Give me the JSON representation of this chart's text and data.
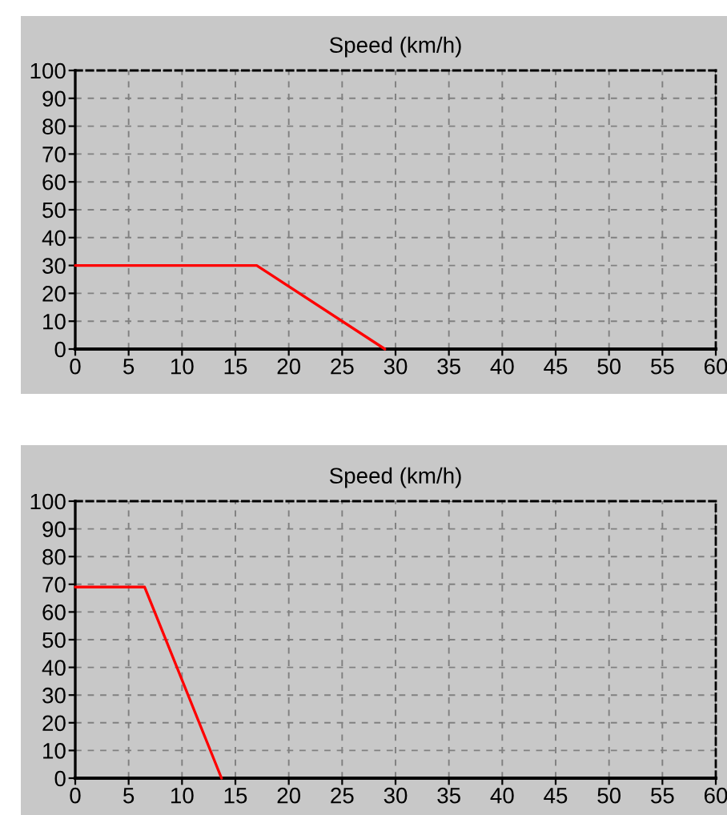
{
  "chart_data": [
    {
      "type": "line",
      "title": "Speed (km/h)",
      "x": [
        0,
        17,
        29
      ],
      "values": [
        30,
        30,
        0
      ],
      "color": "#ff0000",
      "xlim": [
        0,
        60
      ],
      "ylim": [
        0,
        100
      ],
      "xticks": [
        0,
        5,
        10,
        15,
        20,
        25,
        30,
        35,
        40,
        45,
        50,
        55,
        60
      ],
      "yticks": [
        0,
        10,
        20,
        30,
        40,
        50,
        60,
        70,
        80,
        90,
        100
      ],
      "grid": true,
      "line_style": "solid"
    },
    {
      "type": "line",
      "title": "Speed (km/h)",
      "x": [
        0,
        6.5,
        13.7
      ],
      "values": [
        69,
        69,
        0
      ],
      "color": "#ff0000",
      "xlim": [
        0,
        60
      ],
      "ylim": [
        0,
        100
      ],
      "xticks": [
        0,
        5,
        10,
        15,
        20,
        25,
        30,
        35,
        40,
        45,
        50,
        55,
        60
      ],
      "yticks": [
        0,
        10,
        20,
        30,
        40,
        50,
        60,
        70,
        80,
        90,
        100
      ],
      "grid": true,
      "line_style": "solid"
    }
  ]
}
